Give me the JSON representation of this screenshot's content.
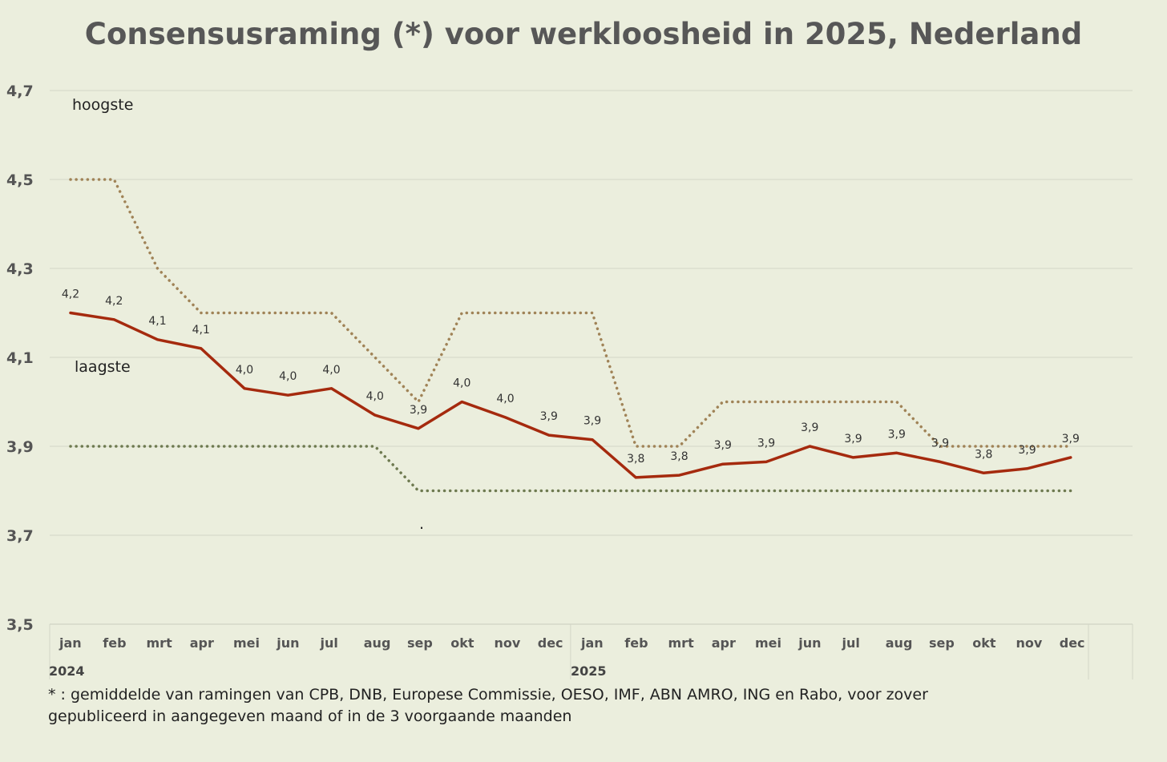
{
  "chart_data": {
    "type": "line",
    "title": "Consensusraming (*) voor werkloosheid in 2025, Nederland",
    "xlabel": "",
    "ylabel": "",
    "ylim": [
      3.5,
      4.7
    ],
    "yticks": [
      "3,5",
      "3,7",
      "3,9",
      "4,1",
      "4,3",
      "4,5",
      "4,7"
    ],
    "ytick_values": [
      3.5,
      3.7,
      3.9,
      4.1,
      4.3,
      4.5,
      4.7
    ],
    "categories": [
      "jan",
      "feb",
      "mrt",
      "apr",
      "mei",
      "jun",
      "jul",
      "aug",
      "sep",
      "okt",
      "nov",
      "dec",
      "jan",
      "feb",
      "mrt",
      "apr",
      "mei",
      "jun",
      "jul",
      "aug",
      "sep",
      "okt",
      "nov",
      "dec"
    ],
    "years": [
      {
        "label": "2024",
        "start_index": 0
      },
      {
        "label": "2025",
        "start_index": 12
      }
    ],
    "series": [
      {
        "key": "consensus",
        "color": "#a52a0e",
        "style": "solid",
        "values": [
          4.2,
          4.185,
          4.14,
          4.12,
          4.03,
          4.015,
          4.03,
          3.97,
          3.94,
          4.0,
          3.965,
          3.925,
          3.915,
          3.83,
          3.835,
          3.86,
          3.865,
          3.9,
          3.875,
          3.885,
          3.865,
          3.84,
          3.85,
          3.875
        ],
        "data_labels": [
          "4,2",
          "4,2",
          "4,1",
          "4,1",
          "4,0",
          "4,0",
          "4,0",
          "4,0",
          "3,9",
          "4,0",
          "4,0",
          "3,9",
          "3,9",
          "3,8",
          "3,8",
          "3,9",
          "3,9",
          "3,9",
          "3,9",
          "3,9",
          "3,9",
          "3,8",
          "3,9",
          "3,9"
        ]
      },
      {
        "name": "hoogste",
        "key": "hoogste",
        "color": "#a08357",
        "style": "dotted",
        "values": [
          4.5,
          4.5,
          4.3,
          4.2,
          4.2,
          4.2,
          4.2,
          4.1,
          4.0,
          4.2,
          4.2,
          4.2,
          4.2,
          3.9,
          3.9,
          4.0,
          4.0,
          4.0,
          4.0,
          4.0,
          3.9,
          3.9,
          3.9,
          3.9
        ]
      },
      {
        "name": "laagste",
        "key": "laagste",
        "color": "#6e7a50",
        "style": "dotted",
        "values": [
          3.9,
          3.9,
          3.9,
          3.9,
          3.9,
          3.9,
          3.9,
          3.9,
          3.8,
          3.8,
          3.8,
          3.8,
          3.8,
          3.8,
          3.8,
          3.8,
          3.8,
          3.8,
          3.8,
          3.8,
          3.8,
          3.8,
          3.8,
          3.8
        ]
      }
    ],
    "annotations": {
      "hoogste": "hoogste",
      "laagste": "laagste",
      "stray_mark": "."
    },
    "grid": true,
    "footnote": [
      "* : gemiddelde van ramingen van CPB, DNB, Europese Commissie, OESO, IMF, ABN AMRO, ING en Rabo, voor zover",
      "gepubliceerd in aangegeven maand of in de 3 voorgaande maanden"
    ]
  }
}
